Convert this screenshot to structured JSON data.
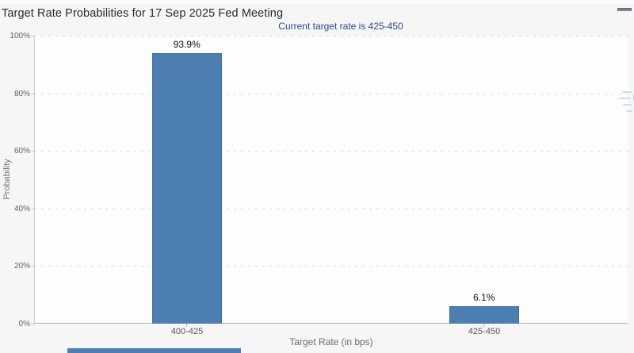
{
  "header": {
    "title": "Target Rate Probabilities for 17 Sep 2025 Fed Meeting",
    "menu_icon": "hamburger-icon"
  },
  "chart_data": {
    "type": "bar",
    "title": "Target Rate Probabilities for 17 Sep 2025 Fed Meeting",
    "subtitle": "Current target rate is 425-450",
    "categories": [
      "400-425",
      "425-450"
    ],
    "values": [
      93.9,
      6.1
    ],
    "value_labels": [
      "93.9%",
      "6.1%"
    ],
    "xlabel": "Target Rate (in bps)",
    "ylabel": "Probability",
    "ylim": [
      0,
      100
    ],
    "ytick_labels": [
      "100%",
      "80%",
      "60%",
      "40%",
      "20%",
      "0%"
    ],
    "grid": "horizontal-dotted",
    "legend": "none",
    "bar_color": "#4d7eb2",
    "bar_border_color": "#3f6d9e",
    "subtitle_color": "#2c4a96"
  },
  "watermark": {
    "letter": "Q"
  },
  "bottom_partial_bar": {
    "color": "#4d7eb2"
  }
}
